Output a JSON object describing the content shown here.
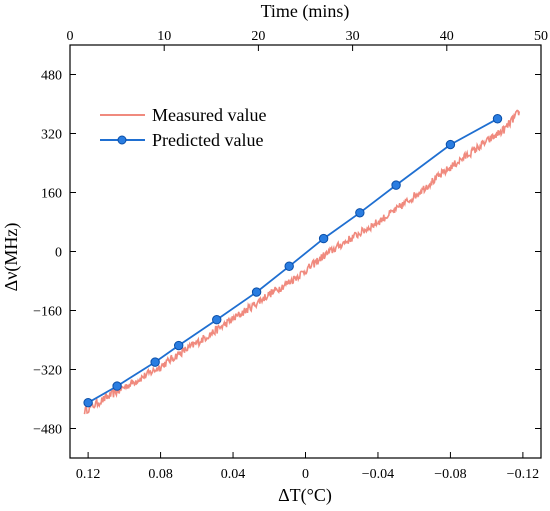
{
  "chart_data": {
    "type": "line",
    "title": "",
    "xlabel": "ΔT(°C)",
    "ylabel": "Δν(MHz)",
    "top_xlabel": "Time (mins)",
    "xlim": [
      0.13,
      -0.13
    ],
    "ylim": [
      -560,
      560
    ],
    "top_xlim": [
      0,
      50
    ],
    "x_ticks": [
      0.12,
      0.08,
      0.04,
      0,
      -0.04,
      -0.08,
      -0.12
    ],
    "x_tick_labels": [
      "0.12",
      "0.08",
      "0.04",
      "0",
      "−0.04",
      "−0.08",
      "−0.12"
    ],
    "y_ticks": [
      -480,
      -320,
      -160,
      0,
      160,
      320,
      480
    ],
    "y_tick_labels": [
      "−480",
      "−320",
      "−160",
      "0",
      "160",
      "320",
      "480"
    ],
    "top_x_ticks": [
      0,
      10,
      20,
      30,
      40,
      50
    ],
    "top_x_tick_labels": [
      "0",
      "10",
      "20",
      "30",
      "40",
      "50"
    ],
    "grid": false,
    "legend_position": "top-left",
    "series": [
      {
        "name": "Measured value",
        "color": "#f08a7e",
        "style": "noisy-line",
        "x": [
          0.122,
          0.11,
          0.1,
          0.09,
          0.08,
          0.07,
          0.06,
          0.05,
          0.04,
          0.03,
          0.02,
          0.01,
          0.0,
          -0.01,
          -0.02,
          -0.03,
          -0.04,
          -0.05,
          -0.06,
          -0.07,
          -0.08,
          -0.09,
          -0.1,
          -0.11,
          -0.118
        ],
        "y": [
          -432,
          -397,
          -368,
          -341,
          -312,
          -278,
          -248,
          -216,
          -183,
          -150,
          -116,
          -86,
          -52,
          -12,
          20,
          50,
          80,
          113,
          150,
          190,
          228,
          264,
          298,
          332,
          380
        ]
      },
      {
        "name": "Predicted value",
        "color": "#1f6fd1",
        "style": "line-markers",
        "x": [
          0.12,
          0.104,
          0.083,
          0.07,
          0.049,
          0.027,
          0.009,
          -0.01,
          -0.03,
          -0.05,
          -0.08,
          -0.106
        ],
        "y": [
          -410,
          -365,
          -300,
          -255,
          -185,
          -110,
          -40,
          35,
          105,
          180,
          290,
          360
        ]
      }
    ]
  }
}
